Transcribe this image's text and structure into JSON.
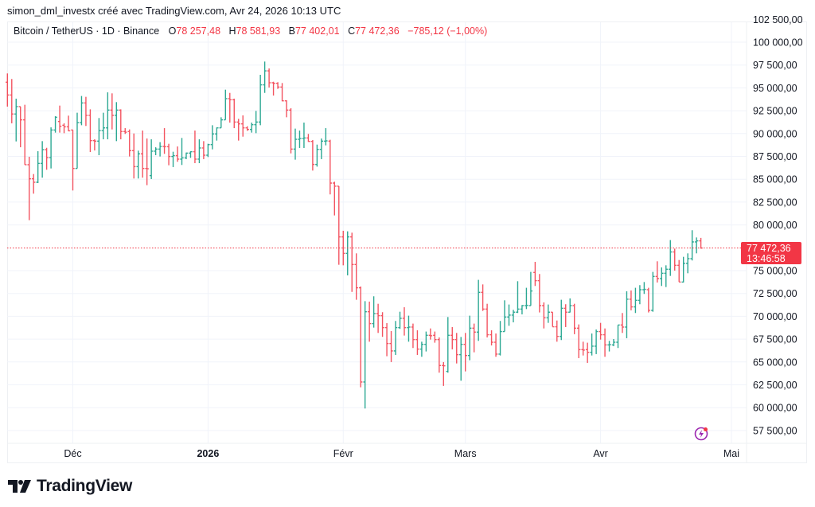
{
  "header": {
    "attribution": "simon_dml_investx créé avec TradingView.com, Avr 24, 2026 10:13 UTC"
  },
  "legend": {
    "symbol": "Bitcoin / TetherUS · 1D · Binance",
    "open_label": "O",
    "open": "78 257,48",
    "high_label": "H",
    "high": "78 581,93",
    "low_label": "B",
    "low": "77 402,01",
    "close_label": "C",
    "close": "77 472,36",
    "change": "−785,12 (−1,00%)"
  },
  "last_price": {
    "price": "77 472,36",
    "countdown": "13:46:58"
  },
  "brand": {
    "name": "TradingView"
  },
  "icons": {
    "logo": "tradingview-logo-icon",
    "alert": "lightning-icon"
  },
  "colors": {
    "up": "#089981",
    "down": "#f23645",
    "grid": "#f0f3fa",
    "text": "#131722"
  },
  "chart_data": {
    "type": "ohlc",
    "x_range": [
      "2025-11-16",
      "2026-04-24"
    ],
    "interval": "1D",
    "ylim": [
      56500,
      102500
    ],
    "grid": true,
    "y_ticks": [
      {
        "value": 102500,
        "label": "102 500,00"
      },
      {
        "value": 100000,
        "label": "100 000,00"
      },
      {
        "value": 97500,
        "label": "97 500,00"
      },
      {
        "value": 95000,
        "label": "95 000,00"
      },
      {
        "value": 92500,
        "label": "92 500,00"
      },
      {
        "value": 90000,
        "label": "90 000,00"
      },
      {
        "value": 87500,
        "label": "87 500,00"
      },
      {
        "value": 85000,
        "label": "85 000,00"
      },
      {
        "value": 82500,
        "label": "82 500,00"
      },
      {
        "value": 80000,
        "label": "80 000,00"
      },
      {
        "value": 75000,
        "label": "75 000,00"
      },
      {
        "value": 72500,
        "label": "72 500,00"
      },
      {
        "value": 70000,
        "label": "70 000,00"
      },
      {
        "value": 67500,
        "label": "67 500,00"
      },
      {
        "value": 65000,
        "label": "65 000,00"
      },
      {
        "value": 62500,
        "label": "62 500,00"
      },
      {
        "value": 60000,
        "label": "60 000,00"
      },
      {
        "value": 57500,
        "label": "57 500,00"
      }
    ],
    "x_ticks": [
      {
        "date": "2025-12-01",
        "label": "Déc",
        "bold": false
      },
      {
        "date": "2026-01-01",
        "label": "2026",
        "bold": true
      },
      {
        "date": "2026-02-01",
        "label": "Févr",
        "bold": false
      },
      {
        "date": "2026-03-01",
        "label": "Mars",
        "bold": false
      },
      {
        "date": "2026-04-01",
        "label": "Avr",
        "bold": false
      },
      {
        "date": "2026-05-01",
        "label": "Mai",
        "bold": false
      }
    ],
    "last_close": 77472.36,
    "ohlc": [
      [
        95620,
        96580,
        92950,
        94220
      ],
      [
        94220,
        95970,
        91120,
        92140
      ],
      [
        92140,
        93820,
        89140,
        92950
      ],
      [
        92950,
        92950,
        88500,
        91500
      ],
      [
        91500,
        93150,
        86590,
        86590
      ],
      [
        86590,
        87460,
        80520,
        85050
      ],
      [
        85050,
        85570,
        83420,
        84670
      ],
      [
        84670,
        88070,
        84580,
        86730
      ],
      [
        86730,
        89170,
        85170,
        88240
      ],
      [
        88240,
        88440,
        86040,
        87370
      ],
      [
        87370,
        90680,
        86180,
        90390
      ],
      [
        90390,
        91900,
        90100,
        91780
      ],
      [
        91320,
        93060,
        90100,
        90800
      ],
      [
        90910,
        91120,
        90040,
        90740
      ],
      [
        90740,
        91960,
        90250,
        90300
      ],
      [
        90390,
        90390,
        83770,
        86180
      ],
      [
        86180,
        92280,
        86180,
        91200
      ],
      [
        91200,
        94110,
        90910,
        93350
      ],
      [
        93350,
        94020,
        90830,
        91990
      ],
      [
        91990,
        92650,
        87980,
        89230
      ],
      [
        89230,
        89370,
        88150,
        89170
      ],
      [
        89170,
        91700,
        87630,
        90330
      ],
      [
        90330,
        92280,
        89370,
        90620
      ],
      [
        90620,
        94510,
        89370,
        92570
      ],
      [
        92570,
        94400,
        90450,
        91990
      ],
      [
        91990,
        93440,
        89170,
        92570
      ],
      [
        92570,
        92650,
        89370,
        90220
      ],
      [
        90220,
        90590,
        89960,
        90150
      ],
      [
        90220,
        90450,
        87490,
        88130
      ],
      [
        88130,
        90010,
        85080,
        86380
      ],
      [
        86380,
        88130,
        85080,
        87780
      ],
      [
        87780,
        90330,
        85170,
        86180
      ],
      [
        86180,
        89460,
        84350,
        86150
      ],
      [
        85400,
        89370,
        85020,
        88070
      ],
      [
        88070,
        88500,
        87630,
        88300
      ],
      [
        88300,
        89060,
        87490,
        88590
      ],
      [
        88590,
        90590,
        87780,
        88560
      ],
      [
        88560,
        88880,
        86530,
        87490
      ],
      [
        87490,
        88010,
        86330,
        87580
      ],
      [
        87580,
        88590,
        86910,
        87200
      ],
      [
        87200,
        89520,
        86560,
        87340
      ],
      [
        87340,
        87920,
        87200,
        87860
      ],
      [
        87860,
        88070,
        87340,
        88010
      ],
      [
        88010,
        90330,
        86760,
        87200
      ],
      [
        87200,
        89370,
        86760,
        88420
      ],
      [
        88420,
        89170,
        87200,
        87630
      ],
      [
        87630,
        88880,
        87430,
        88790
      ],
      [
        88790,
        90910,
        88270,
        89960
      ],
      [
        89960,
        90680,
        89230,
        90620
      ],
      [
        90620,
        91780,
        90620,
        91500
      ],
      [
        91500,
        94800,
        91500,
        93820
      ],
      [
        93820,
        94450,
        91200,
        93700
      ],
      [
        93700,
        93820,
        90590,
        91260
      ],
      [
        91260,
        91610,
        89230,
        91060
      ],
      [
        91060,
        91990,
        89660,
        90620
      ],
      [
        90620,
        90800,
        90300,
        90450
      ],
      [
        90450,
        91200,
        90100,
        90970
      ],
      [
        90970,
        92480,
        90040,
        91260
      ],
      [
        91260,
        96430,
        90910,
        95330
      ],
      [
        95330,
        97880,
        94450,
        96860
      ],
      [
        96860,
        97130,
        95040,
        95560
      ],
      [
        95560,
        95670,
        94160,
        95500
      ],
      [
        95500,
        95620,
        94890,
        95090
      ],
      [
        95090,
        95530,
        93530,
        93580
      ],
      [
        93580,
        93640,
        91780,
        92570
      ],
      [
        92570,
        92770,
        87830,
        88300
      ],
      [
        88300,
        90540,
        87140,
        89370
      ],
      [
        89370,
        90330,
        88420,
        89460
      ],
      [
        89460,
        91200,
        88420,
        89520
      ],
      [
        89520,
        89960,
        89090,
        89140
      ],
      [
        89140,
        89290,
        85950,
        86620
      ],
      [
        86620,
        88790,
        86380,
        88270
      ],
      [
        88270,
        89460,
        87200,
        89170
      ],
      [
        89170,
        90590,
        88710,
        89200
      ],
      [
        89170,
        89320,
        83340,
        84580
      ],
      [
        84580,
        84730,
        81040,
        84240
      ],
      [
        84240,
        84240,
        75640,
        78690
      ],
      [
        78690,
        79360,
        75580,
        76890
      ],
      [
        76890,
        79300,
        74480,
        78690
      ],
      [
        78690,
        79150,
        72670,
        75670
      ],
      [
        75670,
        76890,
        71810,
        73120
      ],
      [
        73120,
        73260,
        62230,
        62810
      ],
      [
        62810,
        71660,
        59910,
        70500
      ],
      [
        70500,
        71610,
        67220,
        69200
      ],
      [
        69200,
        72190,
        68760,
        70300
      ],
      [
        70300,
        71370,
        68180,
        70070
      ],
      [
        70070,
        70450,
        67750,
        68760
      ],
      [
        68760,
        69250,
        65630,
        67020
      ],
      [
        67020,
        68380,
        64990,
        66210
      ],
      [
        66210,
        69490,
        65770,
        68760
      ],
      [
        68760,
        70500,
        68620,
        69780
      ],
      [
        69780,
        70990,
        67890,
        68760
      ],
      [
        68760,
        70070,
        67220,
        68820
      ],
      [
        68820,
        69200,
        66530,
        67450
      ],
      [
        67450,
        68470,
        65770,
        66410
      ],
      [
        66410,
        67220,
        65570,
        66930
      ],
      [
        66930,
        68330,
        66150,
        67920
      ],
      [
        67920,
        68670,
        67450,
        67870
      ],
      [
        67920,
        68330,
        67110,
        67450
      ],
      [
        67450,
        67690,
        63830,
        64610
      ],
      [
        64610,
        64990,
        62380,
        64580
      ],
      [
        63970,
        69920,
        63830,
        67920
      ],
      [
        67920,
        68820,
        66380,
        67450
      ],
      [
        67450,
        68180,
        64840,
        65800
      ],
      [
        65800,
        67740,
        62950,
        66930
      ],
      [
        66930,
        68180,
        63970,
        65710
      ],
      [
        65710,
        70070,
        65190,
        68700
      ],
      [
        68700,
        69200,
        66060,
        68270
      ],
      [
        68270,
        73990,
        67310,
        72620
      ],
      [
        72620,
        73490,
        70590,
        70790
      ],
      [
        70790,
        71370,
        67690,
        67980
      ],
      [
        67980,
        68470,
        66810,
        67160
      ],
      [
        67160,
        68120,
        65570,
        65860
      ],
      [
        65860,
        69490,
        65710,
        68330
      ],
      [
        68330,
        71750,
        68330,
        69920
      ],
      [
        69920,
        71290,
        68960,
        70130
      ],
      [
        70130,
        70710,
        69340,
        70450
      ],
      [
        70450,
        73840,
        70360,
        70790
      ],
      [
        70790,
        71230,
        70210,
        71170
      ],
      [
        71170,
        73120,
        70790,
        71200
      ],
      [
        71170,
        74860,
        71170,
        72770
      ],
      [
        74800,
        75960,
        73320,
        73900
      ],
      [
        73900,
        74630,
        70420,
        71170
      ],
      [
        71170,
        71520,
        68670,
        69840
      ],
      [
        69840,
        71290,
        69280,
        70450
      ],
      [
        70450,
        70450,
        68850,
        68850
      ],
      [
        68850,
        69540,
        67220,
        67800
      ],
      [
        67800,
        71810,
        67400,
        70880
      ],
      [
        70880,
        71320,
        68820,
        70450
      ],
      [
        70450,
        71960,
        70420,
        71170
      ],
      [
        71170,
        71370,
        68040,
        68700
      ],
      [
        68700,
        69110,
        65420,
        66350
      ],
      [
        66350,
        67220,
        65710,
        66300
      ],
      [
        66350,
        67110,
        64900,
        66060
      ],
      [
        66060,
        68120,
        65710,
        66730
      ],
      [
        66730,
        68560,
        65860,
        68330
      ],
      [
        68330,
        69280,
        67450,
        67980
      ],
      [
        67980,
        68670,
        65570,
        66870
      ],
      [
        66870,
        67310,
        66150,
        66900
      ],
      [
        66870,
        67510,
        66730,
        67160
      ],
      [
        67160,
        69050,
        66530,
        69050
      ],
      [
        69050,
        70360,
        68180,
        68820
      ],
      [
        68820,
        72740,
        67600,
        71870
      ],
      [
        71870,
        72830,
        70650,
        71030
      ],
      [
        71030,
        73120,
        70360,
        71750
      ],
      [
        71750,
        73410,
        71320,
        72910
      ],
      [
        72910,
        73750,
        72450,
        72950
      ],
      [
        72910,
        73120,
        70420,
        70650
      ],
      [
        70650,
        74860,
        70500,
        74360
      ],
      [
        74360,
        76020,
        73700,
        74130
      ],
      [
        74130,
        75350,
        73320,
        74710
      ],
      [
        74710,
        75580,
        73200,
        75150
      ],
      [
        75150,
        78340,
        74420,
        77040
      ],
      [
        77040,
        77410,
        75000,
        75580
      ],
      [
        75580,
        76160,
        73760,
        73750
      ],
      [
        73750,
        76510,
        73700,
        75790
      ],
      [
        75790,
        76890,
        74710,
        76310
      ],
      [
        76310,
        79420,
        76110,
        78140
      ],
      [
        78140,
        78630,
        76890,
        78257.48
      ],
      [
        78257.48,
        78581.93,
        77402.01,
        77472.36
      ]
    ]
  }
}
